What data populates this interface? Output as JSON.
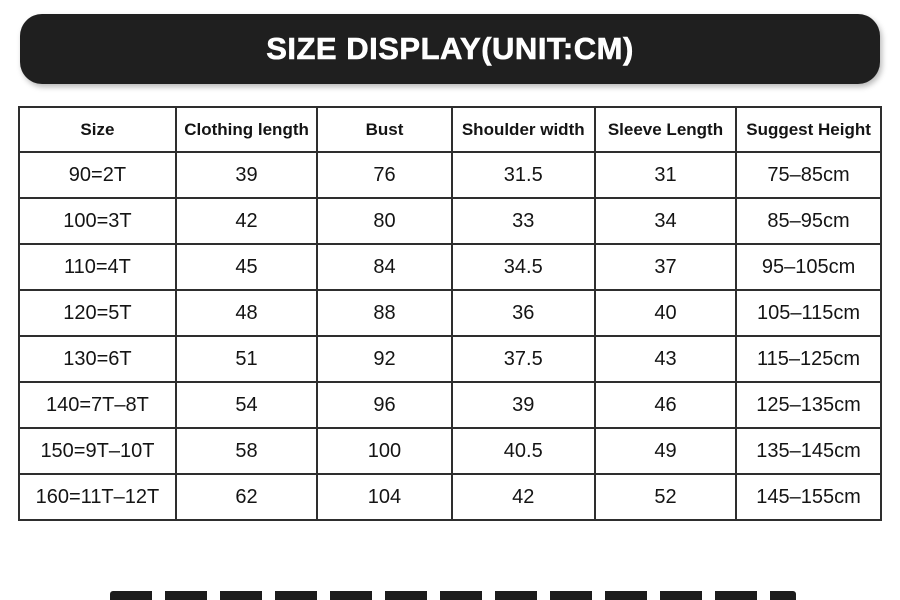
{
  "banner": {
    "title": "SIZE DISPLAY(UNIT:CM)"
  },
  "colors": {
    "banner_bg": "#1f1f1f",
    "banner_text": "#ffffff",
    "table_border": "#2e2e2e",
    "text": "#141414",
    "page_bg": "#ffffff"
  },
  "size_table": {
    "columns": [
      "Size",
      "Clothing length",
      "Bust",
      "Shoulder width",
      "Sleeve Length",
      "Suggest Height"
    ],
    "rows": [
      [
        "90=2T",
        "39",
        "76",
        "31.5",
        "31",
        "75–85cm"
      ],
      [
        "100=3T",
        "42",
        "80",
        "33",
        "34",
        "85–95cm"
      ],
      [
        "110=4T",
        "45",
        "84",
        "34.5",
        "37",
        "95–105cm"
      ],
      [
        "120=5T",
        "48",
        "88",
        "36",
        "40",
        "105–115cm"
      ],
      [
        "130=6T",
        "51",
        "92",
        "37.5",
        "43",
        "115–125cm"
      ],
      [
        "140=7T–8T",
        "54",
        "96",
        "39",
        "46",
        "125–135cm"
      ],
      [
        "150=9T–10T",
        "58",
        "100",
        "40.5",
        "49",
        "135–145cm"
      ],
      [
        "160=11T–12T",
        "62",
        "104",
        "42",
        "52",
        "145–155cm"
      ]
    ]
  }
}
